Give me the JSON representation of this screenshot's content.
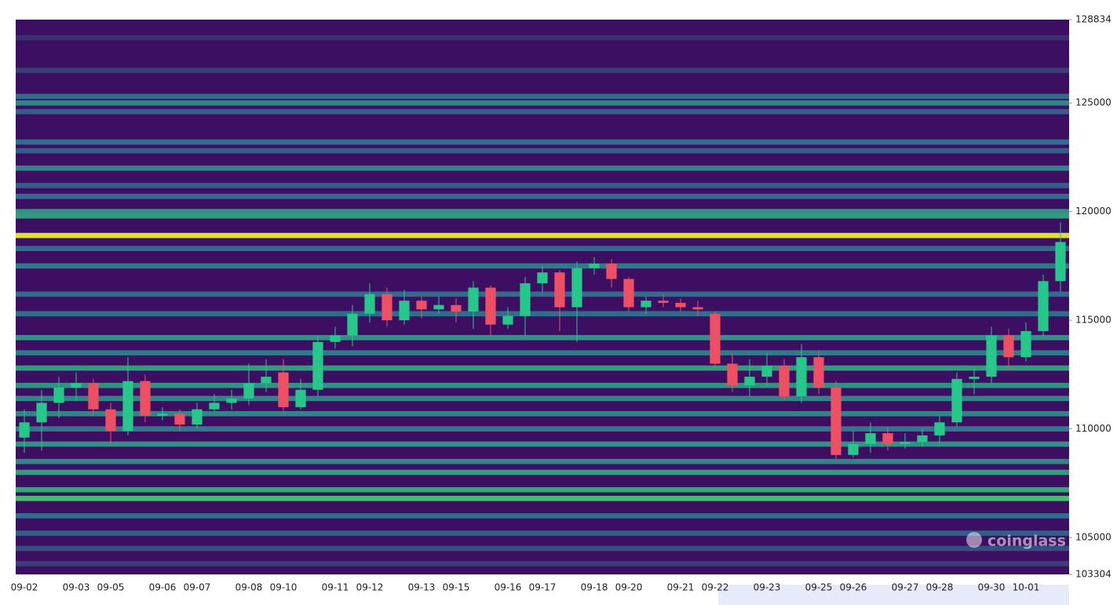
{
  "chart_data": {
    "type": "candlestick",
    "watermark": "coinglass",
    "ylim": [
      103304,
      128834
    ],
    "yticks": [
      103304,
      105000,
      110000,
      115000,
      120000,
      125000,
      128834
    ],
    "up_color": "#26c88a",
    "down_color": "#ef4f63",
    "background_color": "#3d0f63",
    "colorscale": [
      "#440154",
      "#31688e",
      "#35b779",
      "#fde725"
    ],
    "categories": [
      "09-02",
      null,
      null,
      "09-03",
      null,
      "09-05",
      null,
      null,
      "09-06",
      null,
      "09-07",
      null,
      null,
      "09-08",
      null,
      "09-10",
      null,
      null,
      "09-11",
      null,
      "09-12",
      null,
      null,
      "09-13",
      null,
      "09-15",
      null,
      null,
      "09-16",
      null,
      "09-17",
      null,
      null,
      "09-18",
      null,
      "09-20",
      null,
      null,
      "09-21",
      null,
      "09-22",
      null,
      null,
      "09-23",
      null,
      null,
      "09-25",
      null,
      "09-26",
      null,
      null,
      "09-27",
      null,
      "09-28",
      null,
      null,
      "09-30",
      null,
      "10-01",
      null,
      null
    ],
    "open": [
      109600,
      110300,
      111200,
      111900,
      112100,
      110900,
      109900,
      112200,
      110600,
      110700,
      110200,
      110900,
      111200,
      111400,
      112100,
      112600,
      111000,
      111800,
      114000,
      114300,
      115300,
      116200,
      115000,
      115900,
      115500,
      115700,
      115400,
      116500,
      114800,
      115200,
      116700,
      117200,
      115600,
      117400,
      117600,
      116900,
      115600,
      115900,
      115800,
      115600,
      115300,
      113000,
      112000,
      112400,
      112900,
      111500,
      113300,
      111900,
      108800,
      109300,
      109800,
      109300,
      109400,
      109700,
      110300,
      112300,
      112400,
      114300,
      113300,
      114500,
      116800
    ],
    "high": [
      110900,
      111800,
      112400,
      112600,
      112300,
      111200,
      113300,
      112500,
      111000,
      110900,
      111200,
      111600,
      111800,
      113000,
      113200,
      113200,
      112300,
      114300,
      114700,
      115700,
      116700,
      116500,
      116400,
      116100,
      116100,
      116000,
      116800,
      116600,
      115600,
      117000,
      117500,
      117300,
      117700,
      117900,
      117800,
      117000,
      116100,
      116200,
      116000,
      115900,
      115400,
      113500,
      113200,
      113500,
      113200,
      113900,
      113600,
      112200,
      109900,
      110300,
      110100,
      109800,
      110000,
      110600,
      112600,
      112800,
      114700,
      114600,
      114900,
      117100,
      119500
    ],
    "low": [
      108900,
      109000,
      110500,
      111300,
      110600,
      109300,
      109700,
      110300,
      110400,
      109900,
      110000,
      110800,
      110900,
      111100,
      111700,
      110700,
      110900,
      111500,
      113700,
      113800,
      114900,
      114700,
      114800,
      115100,
      115300,
      114900,
      114600,
      114300,
      114600,
      114300,
      116300,
      114500,
      114000,
      117100,
      116500,
      115400,
      115300,
      115600,
      115400,
      115200,
      112800,
      111700,
      111500,
      112000,
      111300,
      111200,
      111600,
      108600,
      108700,
      108900,
      109000,
      109100,
      109200,
      109300,
      110100,
      111600,
      112100,
      112700,
      113100,
      114300,
      116300
    ],
    "close": [
      110300,
      111200,
      111900,
      112100,
      110900,
      109900,
      112200,
      110600,
      110700,
      110200,
      110900,
      111200,
      111400,
      112100,
      112400,
      111000,
      111800,
      114000,
      114300,
      115300,
      116200,
      115000,
      115900,
      115500,
      115700,
      115400,
      116500,
      114800,
      115200,
      116700,
      117200,
      115600,
      117400,
      117600,
      116900,
      115600,
      115900,
      115800,
      115600,
      115500,
      113000,
      112000,
      112400,
      112900,
      111500,
      113300,
      111900,
      108800,
      109300,
      109800,
      109300,
      109400,
      109700,
      110300,
      112300,
      112400,
      114300,
      113300,
      114500,
      116800,
      118600
    ],
    "heatmap": {
      "levels": [
        128000,
        126500,
        125300,
        125000,
        124600,
        123200,
        122800,
        122000,
        121200,
        120700,
        120000,
        119800,
        118900,
        118300,
        117500,
        116200,
        115300,
        114200,
        113500,
        112800,
        112000,
        111400,
        110700,
        110000,
        109300,
        108500,
        108000,
        107200,
        106800,
        106000,
        105200,
        104500,
        103800
      ],
      "values": [
        0.15,
        0.2,
        0.35,
        0.45,
        0.3,
        0.35,
        0.3,
        0.45,
        0.3,
        0.35,
        0.5,
        0.55,
        0.95,
        0.35,
        0.4,
        0.35,
        0.35,
        0.5,
        0.4,
        0.55,
        0.5,
        0.45,
        0.45,
        0.4,
        0.5,
        0.45,
        0.55,
        0.6,
        0.7,
        0.35,
        0.3,
        0.25,
        0.2
      ]
    }
  }
}
